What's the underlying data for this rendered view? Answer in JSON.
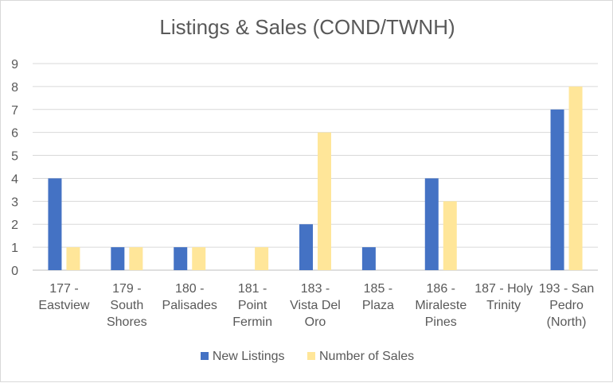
{
  "chart_data": {
    "type": "bar",
    "title": "Listings & Sales (COND/TWNH)",
    "categories": [
      [
        "177 -",
        "Eastview"
      ],
      [
        "179 -",
        "South",
        "Shores"
      ],
      [
        "180 -",
        "Palisades"
      ],
      [
        "181 -",
        "Point",
        "Fermin"
      ],
      [
        "183 -",
        "Vista Del",
        "Oro"
      ],
      [
        "185 -",
        "Plaza"
      ],
      [
        "186 -",
        "Miraleste",
        "Pines"
      ],
      [
        "187 - Holy",
        "Trinity"
      ],
      [
        "193 - San",
        "Pedro",
        "(North)"
      ]
    ],
    "series": [
      {
        "name": "New Listings",
        "color": "#4472c4",
        "values": [
          4,
          1,
          1,
          0,
          2,
          1,
          4,
          0,
          7
        ]
      },
      {
        "name": "Number of Sales",
        "color": "#ffe699",
        "values": [
          1,
          1,
          1,
          1,
          6,
          0,
          3,
          0,
          8
        ]
      }
    ],
    "ylim": [
      0,
      9
    ],
    "yticks": [
      0,
      1,
      2,
      3,
      4,
      5,
      6,
      7,
      8,
      9
    ],
    "grid": true,
    "legend": "bottom"
  }
}
